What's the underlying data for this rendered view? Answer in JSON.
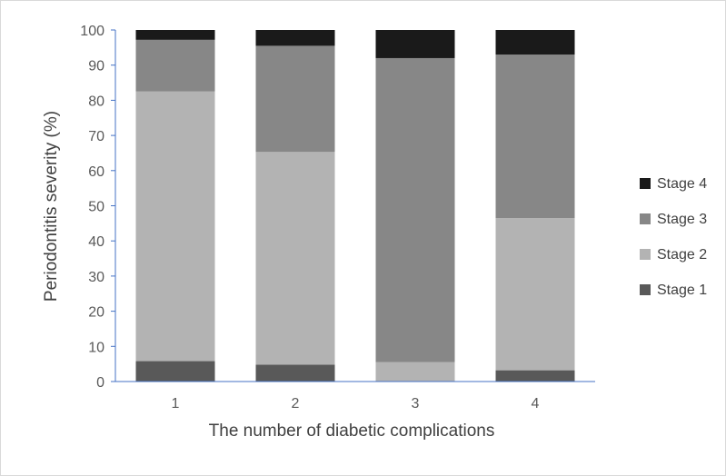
{
  "chart_data": {
    "type": "bar",
    "stacked": true,
    "title": "",
    "xlabel": "The number of diabetic complications",
    "ylabel": "Periodontitis severity (%)",
    "ylim": [
      0,
      100
    ],
    "yticks": [
      0,
      10,
      20,
      30,
      40,
      50,
      60,
      70,
      80,
      90,
      100
    ],
    "categories": [
      "1",
      "2",
      "3",
      "4"
    ],
    "grid": false,
    "legend_position": "right",
    "series": [
      {
        "name": "Stage 1",
        "color": "#595959",
        "values": [
          5.8,
          4.8,
          0.0,
          3.2
        ]
      },
      {
        "name": "Stage 2",
        "color": "#b3b3b3",
        "values": [
          76.7,
          60.5,
          5.5,
          43.3
        ]
      },
      {
        "name": "Stage 3",
        "color": "#878787",
        "values": [
          14.7,
          30.2,
          86.5,
          46.5
        ]
      },
      {
        "name": "Stage 4",
        "color": "#1a1a1a",
        "values": [
          2.8,
          4.5,
          8.0,
          7.0
        ]
      }
    ]
  }
}
